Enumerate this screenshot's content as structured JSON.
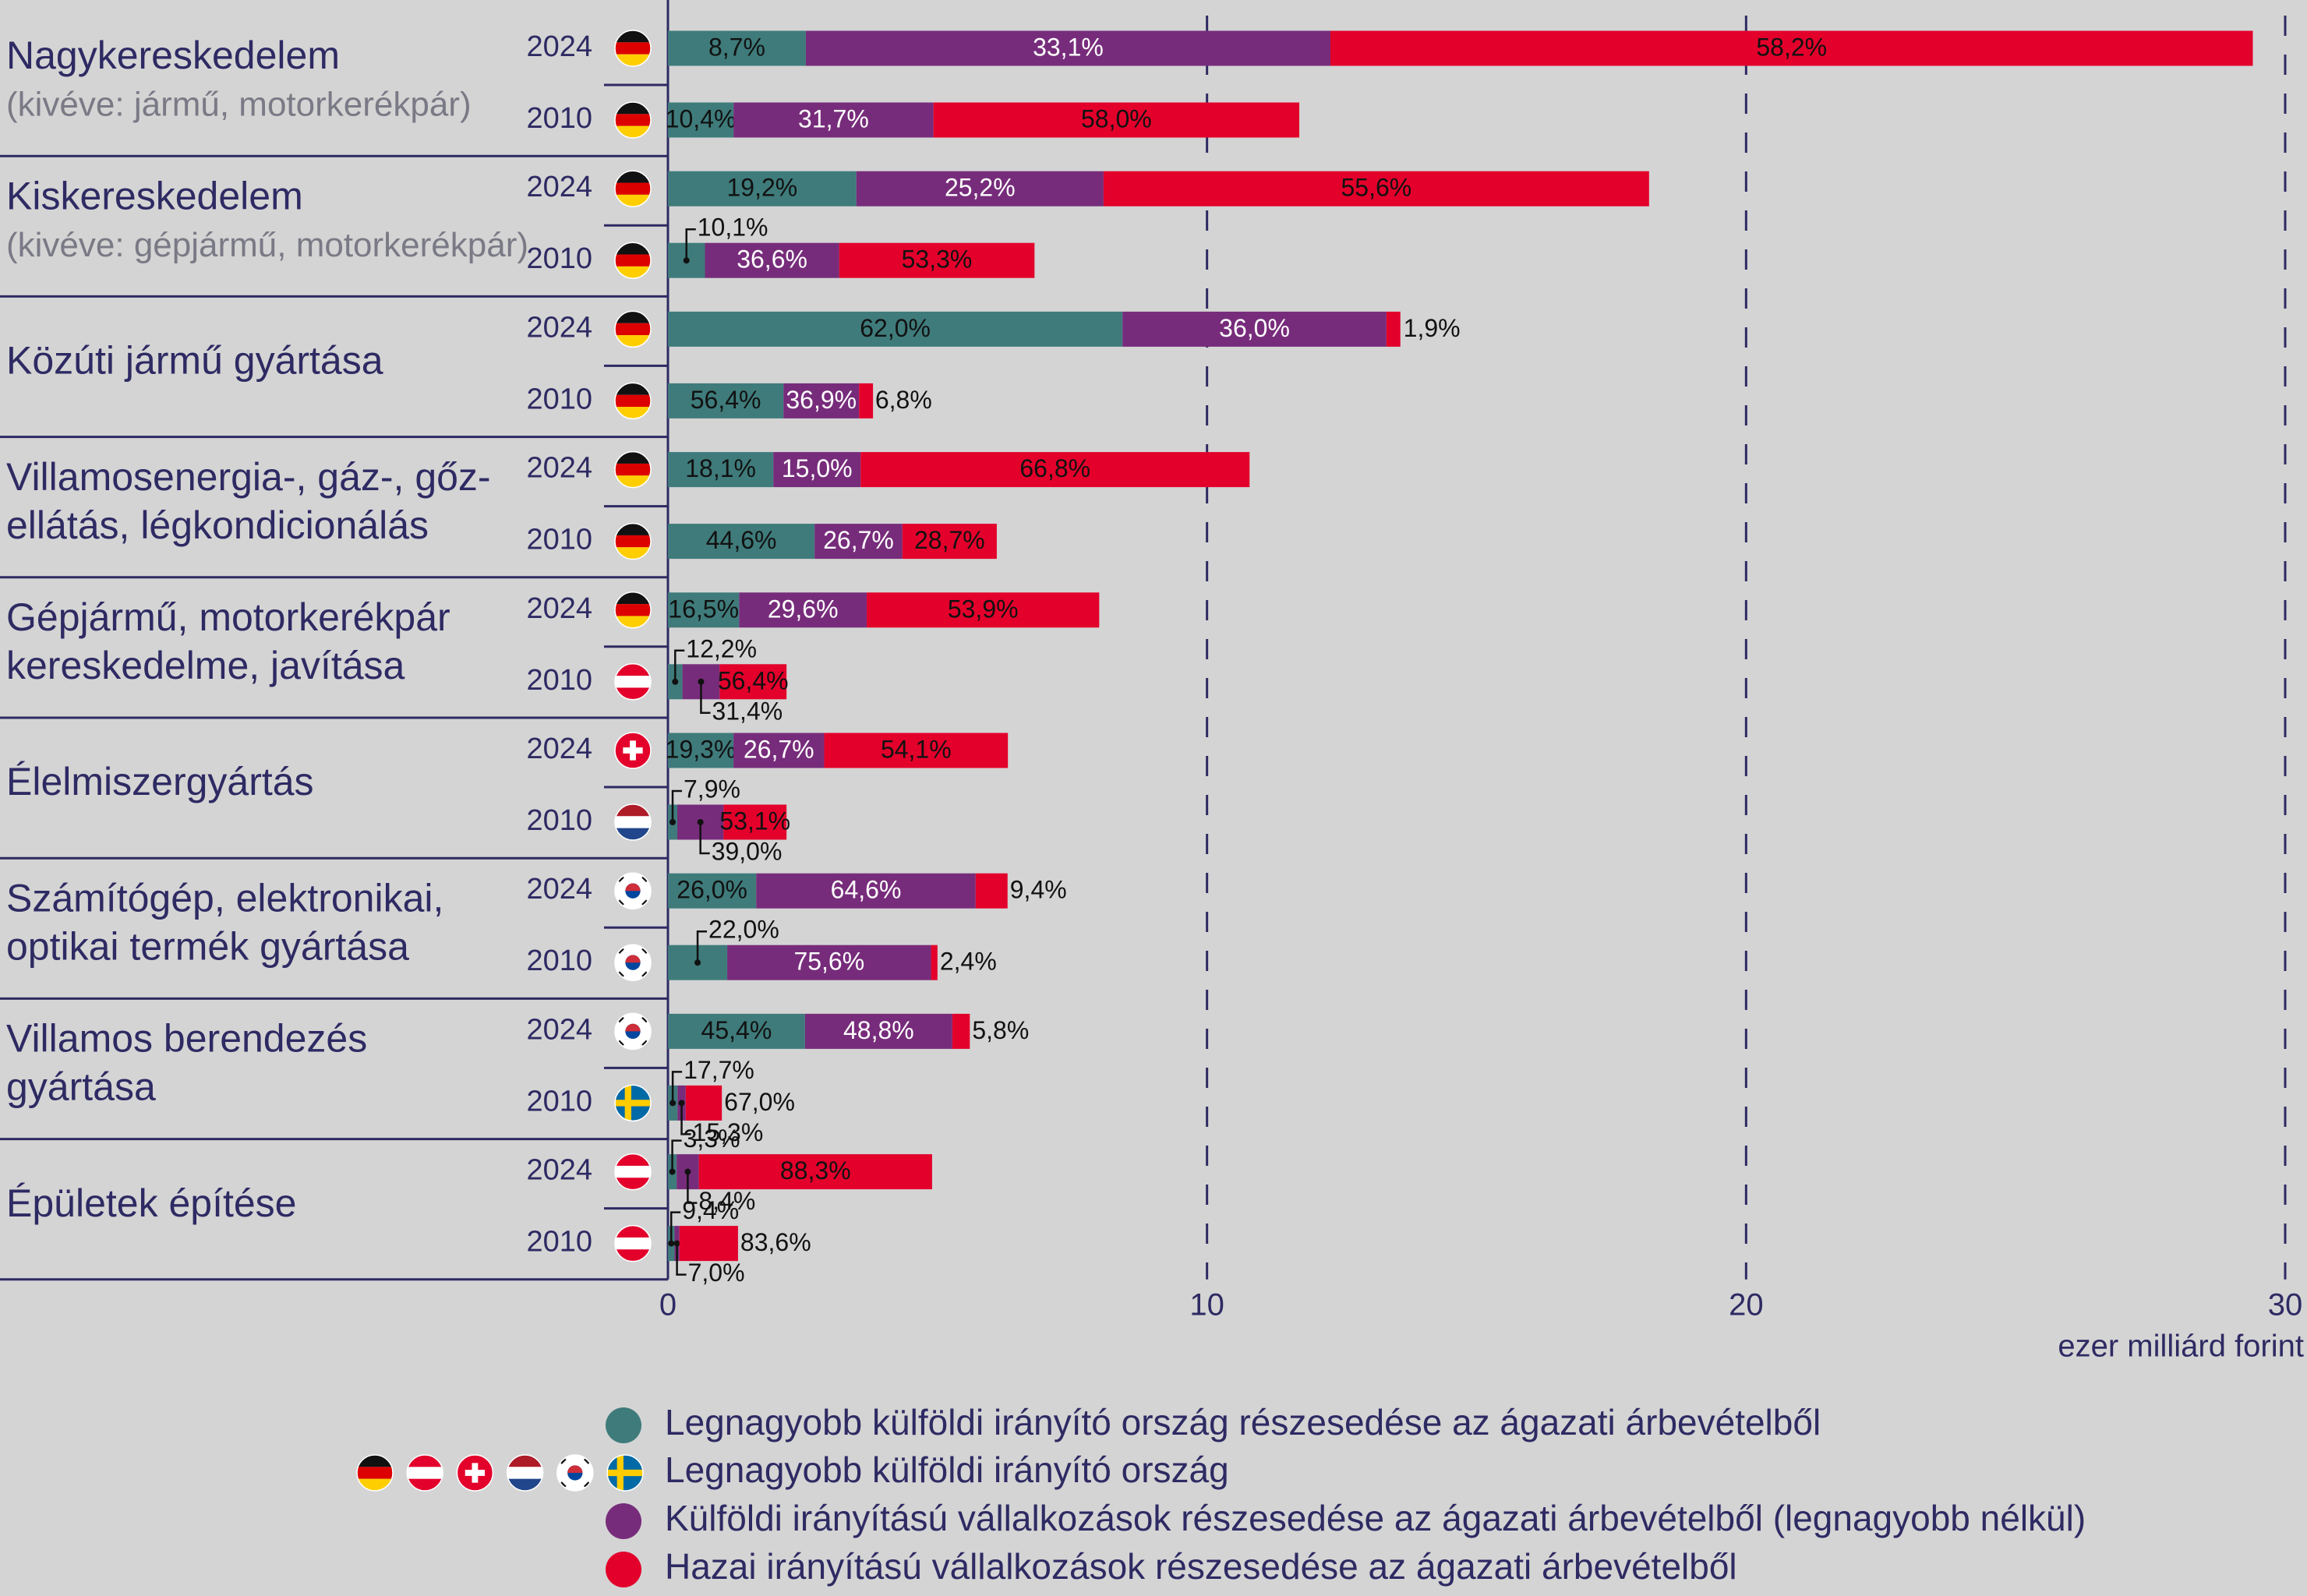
{
  "chart_data": {
    "type": "bar",
    "orientation": "horizontal",
    "stacked": true,
    "xlabel": "ezer milliárd forint",
    "xlim": [
      0,
      30
    ],
    "xticks": [
      0,
      10,
      20,
      30
    ],
    "grid": true,
    "series": [
      {
        "name": "Legnagyobb külföldi irányító ország részesedése az ágazati árbevételből",
        "color": "#3f7b7b"
      },
      {
        "name": "Külföldi irányítású vállalkozások részesedése az ágazati árbevételből (legnagyobb nélkül)",
        "color": "#772c7b"
      },
      {
        "name": "Hazai irányítású vállalkozások részesedése az ágazati árbevételből",
        "color": "#e3002b"
      }
    ],
    "country_legend": {
      "name": "Legnagyobb külföldi irányító ország",
      "countries": [
        "de",
        "at",
        "ch",
        "nl",
        "kr",
        "se"
      ]
    },
    "sectors": [
      {
        "title": [
          "Nagykereskedelem"
        ],
        "subtitle": "(kivéve: jármű, motorkerékpár)",
        "bars": [
          {
            "year": "2024",
            "country": "de",
            "total": 29.4,
            "shares": [
              8.7,
              33.1,
              58.2
            ],
            "share_labels": [
              "8,7%",
              "33,1%",
              "58,2%"
            ]
          },
          {
            "year": "2010",
            "country": "de",
            "total": 11.7,
            "shares": [
              10.4,
              31.7,
              58.0
            ],
            "share_labels": [
              "10,4%",
              "31,7%",
              "58,0%"
            ]
          }
        ]
      },
      {
        "title": [
          "Kiskereskedelem"
        ],
        "subtitle": "(kivéve: gépjármű, motorkerékpár)",
        "bars": [
          {
            "year": "2024",
            "country": "de",
            "total": 18.2,
            "shares": [
              19.2,
              25.2,
              55.6
            ],
            "share_labels": [
              "19,2%",
              "25,2%",
              "55,6%"
            ]
          },
          {
            "year": "2010",
            "country": "de",
            "total": 6.8,
            "shares": [
              10.1,
              36.6,
              53.3
            ],
            "share_labels": [
              "10,1%",
              "36,6%",
              "53,3%"
            ]
          }
        ]
      },
      {
        "title": [
          "Közúti jármű gyártása"
        ],
        "bars": [
          {
            "year": "2024",
            "country": "de",
            "total": 13.6,
            "shares": [
              62.0,
              36.0,
              1.9
            ],
            "share_labels": [
              "62,0%",
              "36,0%",
              "1,9%"
            ]
          },
          {
            "year": "2010",
            "country": "de",
            "total": 3.8,
            "shares": [
              56.4,
              36.9,
              6.8
            ],
            "share_labels": [
              "56,4%",
              "36,9%",
              "6,8%"
            ]
          }
        ]
      },
      {
        "title": [
          "Villamosenergia-, gáz-, gőz-",
          "ellátás, légkondicionálás"
        ],
        "bars": [
          {
            "year": "2024",
            "country": "de",
            "total": 10.8,
            "shares": [
              18.1,
              15.0,
              66.8
            ],
            "share_labels": [
              "18,1%",
              "15,0%",
              "66,8%"
            ]
          },
          {
            "year": "2010",
            "country": "de",
            "total": 6.1,
            "shares": [
              44.6,
              26.7,
              28.7
            ],
            "share_labels": [
              "44,6%",
              "26,7%",
              "28,7%"
            ]
          }
        ]
      },
      {
        "title": [
          "Gépjármű, motorkerékpár",
          "kereskedelme, javítása"
        ],
        "bars": [
          {
            "year": "2024",
            "country": "de",
            "total": 8.0,
            "shares": [
              16.5,
              29.6,
              53.9
            ],
            "share_labels": [
              "16,5%",
              "29,6%",
              "53,9%"
            ]
          },
          {
            "year": "2010",
            "country": "at",
            "total": 2.2,
            "shares": [
              12.2,
              31.4,
              56.4
            ],
            "share_labels": [
              "12,2%",
              "31,4%",
              "56,4%"
            ]
          }
        ]
      },
      {
        "title": [
          "Élelmiszergyártás"
        ],
        "bars": [
          {
            "year": "2024",
            "country": "ch",
            "total": 6.3,
            "shares": [
              19.3,
              26.7,
              54.1
            ],
            "share_labels": [
              "19,3%",
              "26,7%",
              "54,1%"
            ]
          },
          {
            "year": "2010",
            "country": "nl",
            "total": 2.2,
            "shares": [
              7.9,
              39.0,
              53.1
            ],
            "share_labels": [
              "7,9%",
              "39,0%",
              "53,1%"
            ]
          }
        ]
      },
      {
        "title": [
          "Számítógép, elektronikai,",
          "optikai termék gyártása"
        ],
        "bars": [
          {
            "year": "2024",
            "country": "kr",
            "total": 6.3,
            "shares": [
              26.0,
              64.6,
              9.4
            ],
            "share_labels": [
              "26,0%",
              "64,6%",
              "9,4%"
            ]
          },
          {
            "year": "2010",
            "country": "kr",
            "total": 5.0,
            "shares": [
              22.0,
              75.6,
              2.4
            ],
            "share_labels": [
              "22,0%",
              "75,6%",
              "2,4%"
            ]
          }
        ]
      },
      {
        "title": [
          "Villamos berendezés",
          "gyártása"
        ],
        "bars": [
          {
            "year": "2024",
            "country": "kr",
            "total": 5.6,
            "shares": [
              45.4,
              48.8,
              5.8
            ],
            "share_labels": [
              "45,4%",
              "48,8%",
              "5,8%"
            ]
          },
          {
            "year": "2010",
            "country": "se",
            "total": 1.0,
            "shares": [
              17.7,
              15.3,
              67.0
            ],
            "share_labels": [
              "17,7%",
              "15,3%",
              "67,0%"
            ]
          }
        ]
      },
      {
        "title": [
          "Épületek építése"
        ],
        "bars": [
          {
            "year": "2024",
            "country": "at",
            "total": 4.9,
            "shares": [
              3.3,
              8.4,
              88.3
            ],
            "share_labels": [
              "3,3%",
              "8,4%",
              "88,3%"
            ]
          },
          {
            "year": "2010",
            "country": "at",
            "total": 1.3,
            "shares": [
              9.4,
              7.0,
              83.6
            ],
            "share_labels": [
              "9,4%",
              "7,0%",
              "83,6%"
            ]
          }
        ]
      }
    ]
  }
}
